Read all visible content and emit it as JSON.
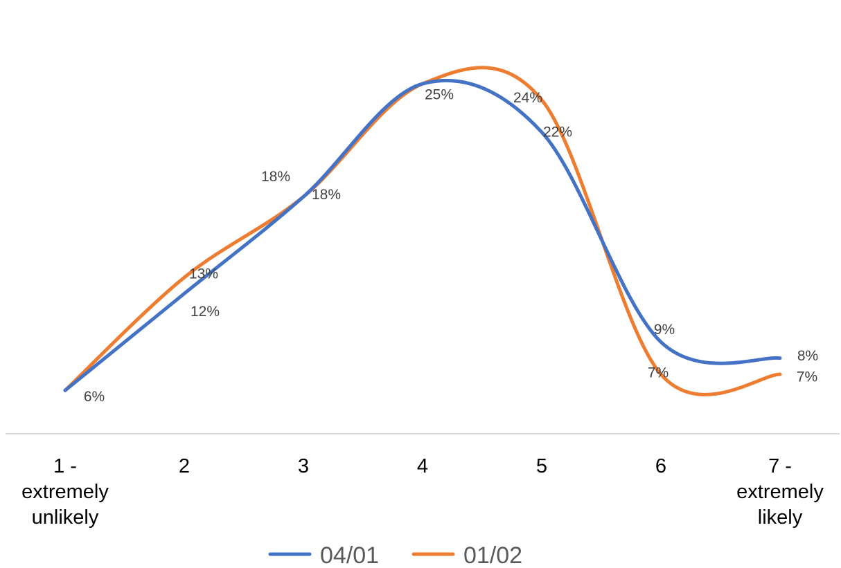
{
  "chart_data": {
    "type": "line",
    "smooth": true,
    "categories": [
      "1 - extremely unlikely",
      "2",
      "3",
      "4",
      "5",
      "6",
      "7 - extremely likely"
    ],
    "category_lines": [
      [
        "1 -",
        "extremely",
        "unlikely"
      ],
      [
        "2"
      ],
      [
        "3"
      ],
      [
        "4"
      ],
      [
        "5"
      ],
      [
        "6"
      ],
      [
        "7 -",
        "extremely",
        "likely"
      ]
    ],
    "series": [
      {
        "name": "04/01",
        "values": [
          0.06,
          0.12,
          0.18,
          0.25,
          0.22,
          0.09,
          0.08
        ],
        "labels": [
          "6%",
          "12%",
          "18%",
          "25%",
          "22%",
          "9%",
          "8%"
        ],
        "color": "#4472C4"
      },
      {
        "name": "01/02",
        "values": [
          0.06,
          0.13,
          0.18,
          0.25,
          0.24,
          0.07,
          0.07
        ],
        "labels": [
          "",
          "13%",
          "18%",
          "",
          "24%",
          "7%",
          "7%"
        ],
        "color": "#ED7D31"
      }
    ],
    "title": "",
    "xlabel": "",
    "ylabel": "",
    "y_axis_shown": false,
    "grid": false,
    "legend": "bottom"
  }
}
